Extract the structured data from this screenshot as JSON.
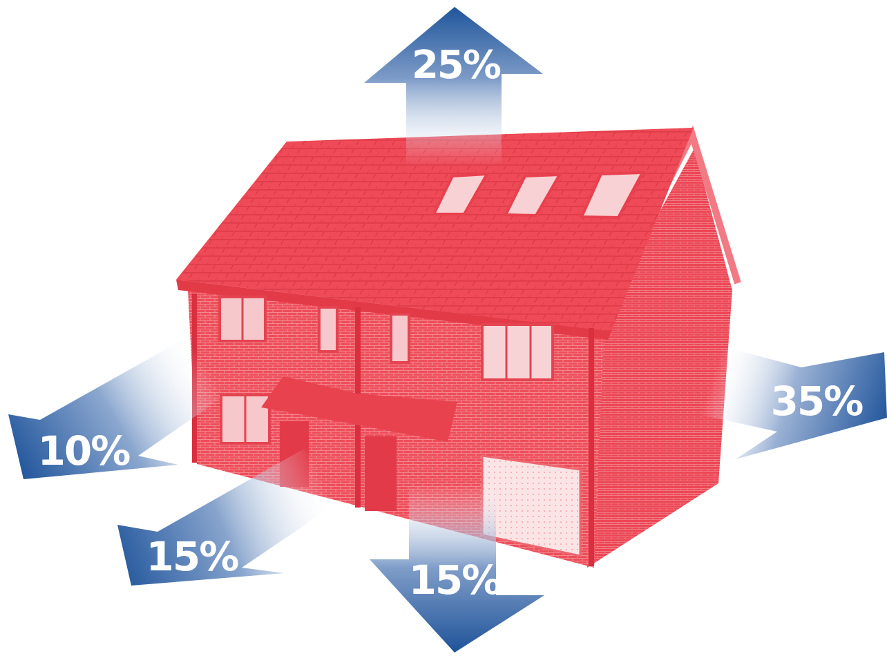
{
  "house": {
    "description_color": "#ee4d5a",
    "window_color": "#f7d2d4",
    "garage_color": "#fbe3e4"
  },
  "arrow_colors": {
    "solid": "#2c5d9e",
    "fade": "#ffffff"
  },
  "heat_loss": {
    "roof": {
      "label": "25%"
    },
    "walls": {
      "label": "35%"
    },
    "windows": {
      "label": "10%"
    },
    "drafts": {
      "label": "15%"
    },
    "floor": {
      "label": "15%"
    }
  }
}
